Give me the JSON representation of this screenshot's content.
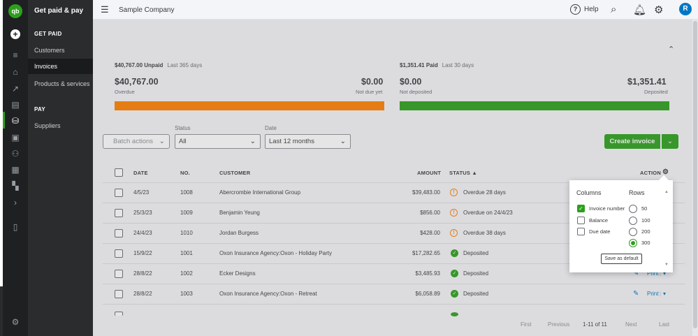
{
  "app": {
    "logo_text": "qb"
  },
  "menu": {
    "title": "Get paid & pay",
    "sections": [
      {
        "label": "GET PAID",
        "items": [
          "Customers",
          "Invoices",
          "Products & services"
        ]
      },
      {
        "label": "PAY",
        "items": [
          "Suppliers"
        ]
      }
    ],
    "active_item": "Invoices"
  },
  "topbar": {
    "company": "Sample Company",
    "help_label": "Help",
    "avatar_initial": "R"
  },
  "summary": {
    "unpaid": {
      "header_amount": "$40,767.00 Unpaid",
      "header_period": "Last 365 days",
      "overdue_amount": "$40,767.00",
      "overdue_label": "Overdue",
      "notdue_amount": "$0.00",
      "notdue_label": "Not due yet",
      "bar_color": "#ff8000"
    },
    "paid": {
      "header_amount": "$1,351.41 Paid",
      "header_period": "Last 30 days",
      "notdeposited_amount": "$0.00",
      "notdeposited_label": "Not deposited",
      "deposited_amount": "$1,351.41",
      "deposited_label": "Deposited",
      "bar_color": "#2ca01c"
    }
  },
  "filters": {
    "batch_label": "Batch actions",
    "status_label": "Status",
    "status_value": "All",
    "date_label": "Date",
    "date_value": "Last 12 months",
    "create_label": "Create invoice"
  },
  "table": {
    "headers": {
      "date": "DATE",
      "no": "NO.",
      "customer": "CUSTOMER",
      "amount": "AMOUNT",
      "status": "STATUS ▲",
      "action": "ACTION"
    },
    "rows": [
      {
        "date": "4/5/23",
        "no": "1008",
        "customer": "Abercrombie International Group",
        "amount": "$39,483.00",
        "status": "Overdue 28 days",
        "status_type": "warn",
        "action": ""
      },
      {
        "date": "25/3/23",
        "no": "1009",
        "customer": "Benjamin Yeung",
        "amount": "$856.00",
        "status": "Overdue on 24/4/23",
        "status_type": "warn",
        "action": ""
      },
      {
        "date": "24/4/23",
        "no": "1010",
        "customer": "Jordan Burgess",
        "amount": "$428.00",
        "status": "Overdue 38 days",
        "status_type": "warn",
        "action": ""
      },
      {
        "date": "15/9/22",
        "no": "1001",
        "customer": "Oxon Insurance Agency:Oxon - Holiday Party",
        "amount": "$17,282.65",
        "status": "Deposited",
        "status_type": "ok",
        "action": ""
      },
      {
        "date": "28/8/22",
        "no": "1002",
        "customer": "Ecker Designs",
        "amount": "$3,485.93",
        "status": "Deposited",
        "status_type": "ok",
        "action": "Print"
      },
      {
        "date": "28/8/22",
        "no": "1003",
        "customer": "Oxon Insurance Agency:Oxon - Retreat",
        "amount": "$6,058.89",
        "status": "Deposited",
        "status_type": "ok",
        "action": "Print"
      }
    ]
  },
  "pager": {
    "first": "First",
    "previous": "Previous",
    "range": "1-11 of 11",
    "next": "Next",
    "last": "Last"
  },
  "popover": {
    "columns_title": "Columns",
    "rows_title": "Rows",
    "columns": [
      {
        "label": "Invoice number",
        "checked": true
      },
      {
        "label": "Balance",
        "checked": false
      },
      {
        "label": "Due date",
        "checked": false
      }
    ],
    "rows": [
      {
        "label": "50",
        "selected": false
      },
      {
        "label": "100",
        "selected": false
      },
      {
        "label": "200",
        "selected": false
      },
      {
        "label": "300",
        "selected": true
      }
    ],
    "save_label": "Save as default"
  },
  "colors": {
    "brand": "#2ca01c",
    "warning": "#ff8000",
    "link": "#0077c5"
  }
}
